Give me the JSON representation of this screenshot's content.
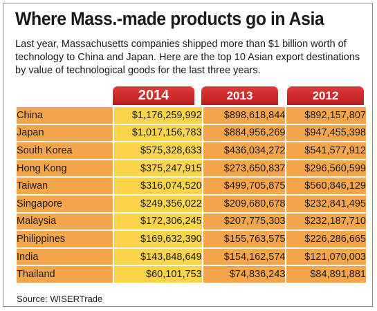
{
  "title": "Where Mass.-made products go in Asia",
  "subtitle": "Last year, Massachusetts companies shipped more than $1 billion worth of technology to China and Japan. Here are the top 10 Asian export destinations by value of technological goods for the last three years.",
  "source": "Source: WISERTrade",
  "colors": {
    "header_red": "#c8282a",
    "row_orange": "#f5a64a",
    "highlight_yellow": "#fbd44a"
  },
  "chart_data": {
    "type": "table",
    "columns": [
      "2014",
      "2013",
      "2012"
    ],
    "rows": [
      {
        "country": "China",
        "values": [
          "$1,176,259,992",
          "$898,618,844",
          "$892,157,807"
        ]
      },
      {
        "country": "Japan",
        "values": [
          "$1,017,156,783",
          "$884,956,269",
          "$947,455,398"
        ]
      },
      {
        "country": "South Korea",
        "values": [
          "$575,328,633",
          "$436,034,272",
          "$541,577,912"
        ]
      },
      {
        "country": "Hong Kong",
        "values": [
          "$375,247,915",
          "$273,650,837",
          "$296,560,599"
        ]
      },
      {
        "country": "Taiwan",
        "values": [
          "$316,074,520",
          "$499,705,875",
          "$560,846,129"
        ]
      },
      {
        "country": "Singapore",
        "values": [
          "$249,356,022",
          "$209,680,678",
          "$232,841,495"
        ]
      },
      {
        "country": "Malaysia",
        "values": [
          "$172,306,245",
          "$207,775,303",
          "$232,187,710"
        ]
      },
      {
        "country": "Philippines",
        "values": [
          "$169,632,390",
          "$155,763,575",
          "$226,286,665"
        ]
      },
      {
        "country": "India",
        "values": [
          "$143,848,649",
          "$154,162,574",
          "$121,070,003"
        ]
      },
      {
        "country": "Thailand",
        "values": [
          "$60,101,753",
          "$74,836,243",
          "$84,891,881"
        ]
      }
    ]
  }
}
